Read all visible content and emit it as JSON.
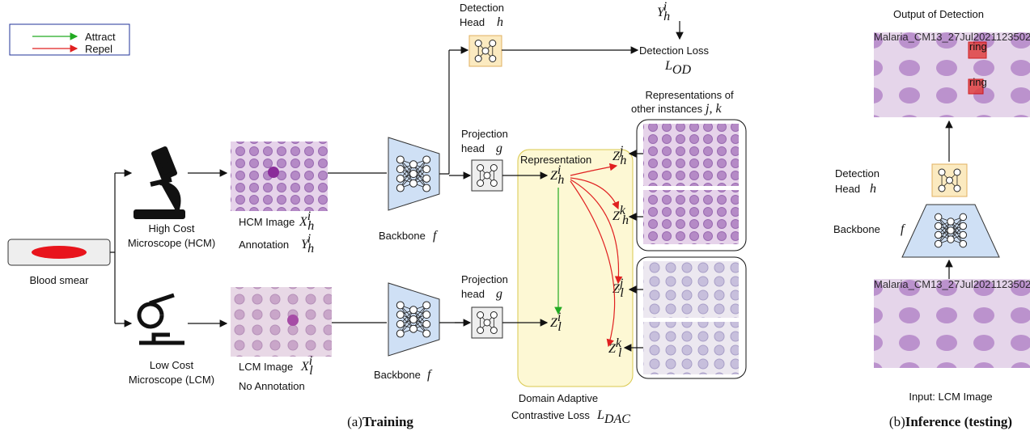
{
  "legend": {
    "attract": "Attract",
    "repel": "Repel"
  },
  "training": {
    "caption_prefix": "(a)",
    "caption_bold": "Training",
    "blood_smear": "Blood smear",
    "hcm": {
      "line1": "High Cost",
      "line2": "Microscope (HCM)"
    },
    "lcm": {
      "line1": "Low Cost",
      "line2": "Microscope (LCM)"
    },
    "hcm_image": {
      "label": "HCM Image",
      "math": {
        "base": "X",
        "sub": "h",
        "sup": "i"
      }
    },
    "hcm_annotation": {
      "label": "Annotation",
      "math": {
        "base": "Y",
        "sub": "h",
        "sup": "i"
      }
    },
    "lcm_image": {
      "label": "LCM Image",
      "math": {
        "base": "X",
        "sub": "l",
        "sup": "i"
      }
    },
    "lcm_annotation": "No Annotation",
    "backbone_top": {
      "label": "Backbone",
      "var": "f"
    },
    "backbone_bottom": {
      "label": "Backbone",
      "var": "f"
    },
    "detection_head": {
      "line1": "Detection",
      "line2": "Head",
      "var": "h"
    },
    "ground_truth": {
      "base": "Y",
      "sub": "h",
      "sup": "i"
    },
    "detection_loss": {
      "label": "Detection Loss",
      "math": {
        "base": "L",
        "sub": "OD"
      }
    },
    "projection_top": {
      "line1": "Projection",
      "line2": "head",
      "var": "g"
    },
    "projection_bottom": {
      "line1": "Projection",
      "line2": "head",
      "var": "g"
    },
    "representation": "Representation",
    "z_hi": {
      "base": "Z",
      "sub": "h",
      "sup": "i"
    },
    "z_hj": {
      "base": "Z",
      "sub": "h",
      "sup": "j"
    },
    "z_hk": {
      "base": "Z",
      "sub": "h",
      "sup": "k"
    },
    "z_li": {
      "base": "Z",
      "sub": "l",
      "sup": "i"
    },
    "z_lj": {
      "base": "Z",
      "sub": "l",
      "sup": "j"
    },
    "z_lk": {
      "base": "Z",
      "sub": "l",
      "sup": "k"
    },
    "other_instances": {
      "line1": "Representations of",
      "line2": "other instances",
      "vars": "j, k"
    },
    "dac_loss": {
      "line1": "Domain Adaptive",
      "line2": "Contrastive Loss",
      "math": {
        "base": "L",
        "sub": "DAC"
      }
    }
  },
  "inference": {
    "caption_prefix": "(b)",
    "caption_bold": "Inference (testing)",
    "output": "Output of Detection",
    "input": "Input: LCM Image",
    "detection_head": {
      "line1": "Detection",
      "line2": "Head",
      "var": "h"
    },
    "backbone": {
      "label": "Backbone",
      "var": "f"
    },
    "box_labels": [
      "ring",
      "ring"
    ],
    "watermark": "Malaria_CM13_27Jul2021123502"
  }
}
